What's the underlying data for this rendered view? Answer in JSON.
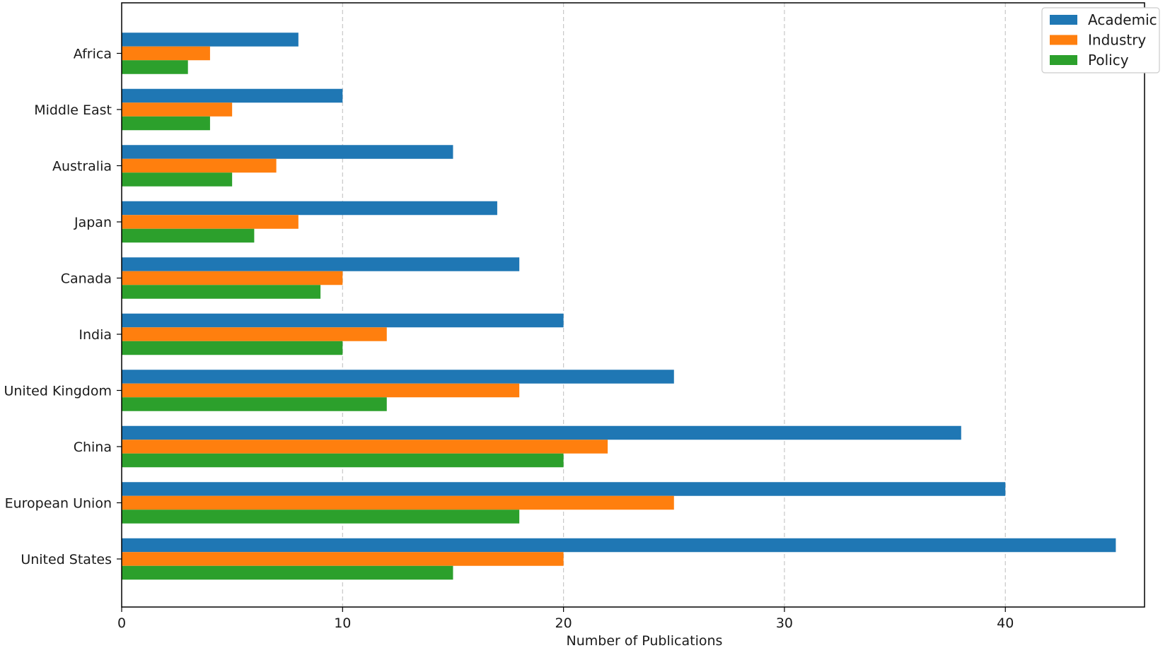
{
  "chart_data": {
    "type": "bar",
    "orientation": "horizontal",
    "categories": [
      "United States",
      "European Union",
      "China",
      "United Kingdom",
      "India",
      "Canada",
      "Japan",
      "Australia",
      "Middle East",
      "Africa"
    ],
    "series": [
      {
        "name": "Academic",
        "color": "#1f77b4",
        "values": [
          45,
          40,
          38,
          25,
          20,
          18,
          17,
          15,
          10,
          8
        ]
      },
      {
        "name": "Industry",
        "color": "#ff7f0e",
        "values": [
          20,
          25,
          22,
          18,
          12,
          10,
          8,
          7,
          5,
          4
        ]
      },
      {
        "name": "Policy",
        "color": "#2ca02c",
        "values": [
          15,
          18,
          20,
          12,
          10,
          9,
          6,
          5,
          4,
          3
        ]
      }
    ],
    "xlabel": "Number of Publications",
    "ylabel": "",
    "title": "",
    "xlim": [
      0,
      46.3
    ],
    "xticks": [
      0,
      10,
      20,
      30,
      40
    ],
    "grid": "vertical-dashed",
    "legend_position": "top-right"
  }
}
